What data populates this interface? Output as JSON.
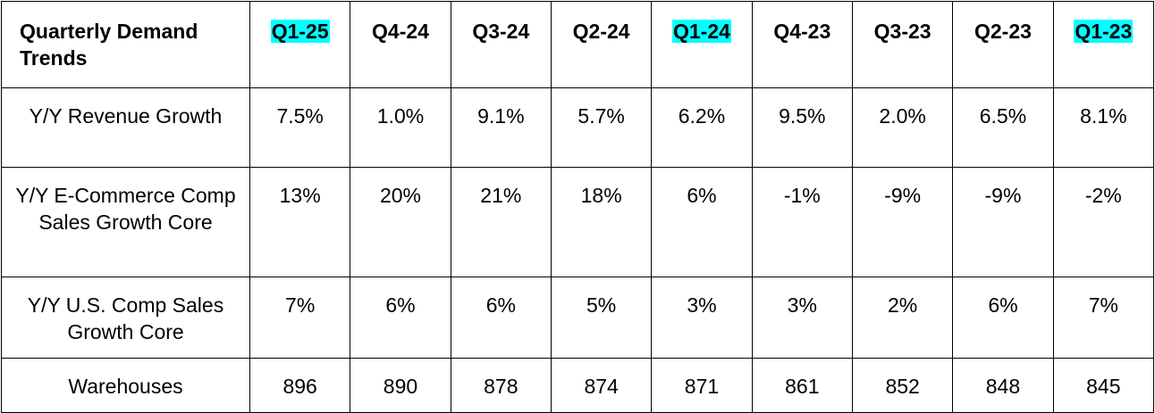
{
  "table": {
    "corner": "Quarterly Demand Trends",
    "header": [
      "Q1-25",
      "Q4-24",
      "Q3-24",
      "Q2-24",
      "Q1-24",
      "Q4-23",
      "Q3-23",
      "Q2-23",
      "Q1-23"
    ],
    "rows": [
      {
        "label": "Y/Y Revenue Growth",
        "cells": [
          "7.5%",
          "1.0%",
          "9.1%",
          "5.7%",
          "6.2%",
          "9.5%",
          "2.0%",
          "6.5%",
          "8.1%"
        ]
      },
      {
        "label": "Y/Y E-Commerce Comp Sales Growth Core",
        "cells": [
          "13%",
          "20%",
          "21%",
          "18%",
          "6%",
          "-1%",
          "-9%",
          "-9%",
          "-2%"
        ]
      },
      {
        "label": "Y/Y U.S. Comp Sales Growth Core",
        "cells": [
          "7%",
          "6%",
          "6%",
          "5%",
          "3%",
          "3%",
          "2%",
          "6%",
          "7%"
        ]
      },
      {
        "label": "Warehouses",
        "cells": [
          "896",
          "890",
          "878",
          "874",
          "871",
          "861",
          "852",
          "848",
          "845"
        ]
      }
    ]
  }
}
